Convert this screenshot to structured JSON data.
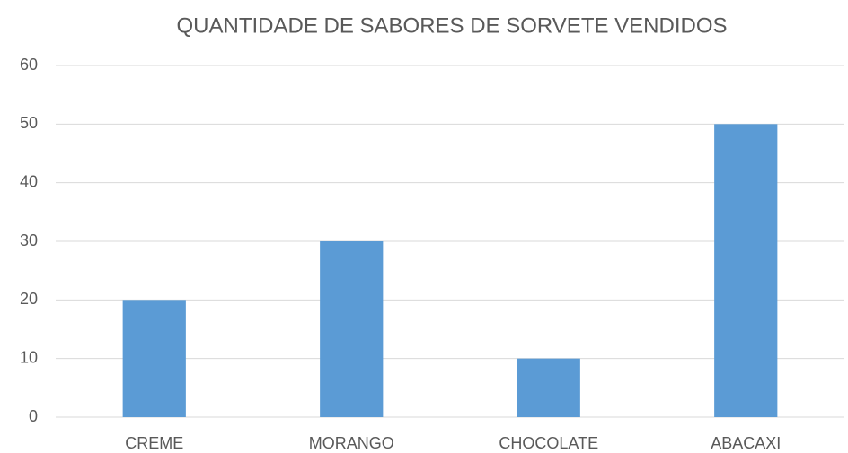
{
  "chart_data": {
    "type": "bar",
    "title": "QUANTIDADE DE SABORES DE SORVETE VENDIDOS",
    "categories": [
      "CREME",
      "MORANGO",
      "CHOCOLATE",
      "ABACAXI"
    ],
    "values": [
      20,
      30,
      10,
      50
    ],
    "color": "#5b9bd5",
    "ylim": [
      0,
      60
    ],
    "yticks": [
      0,
      10,
      20,
      30,
      40,
      50,
      60
    ],
    "grid": true
  }
}
